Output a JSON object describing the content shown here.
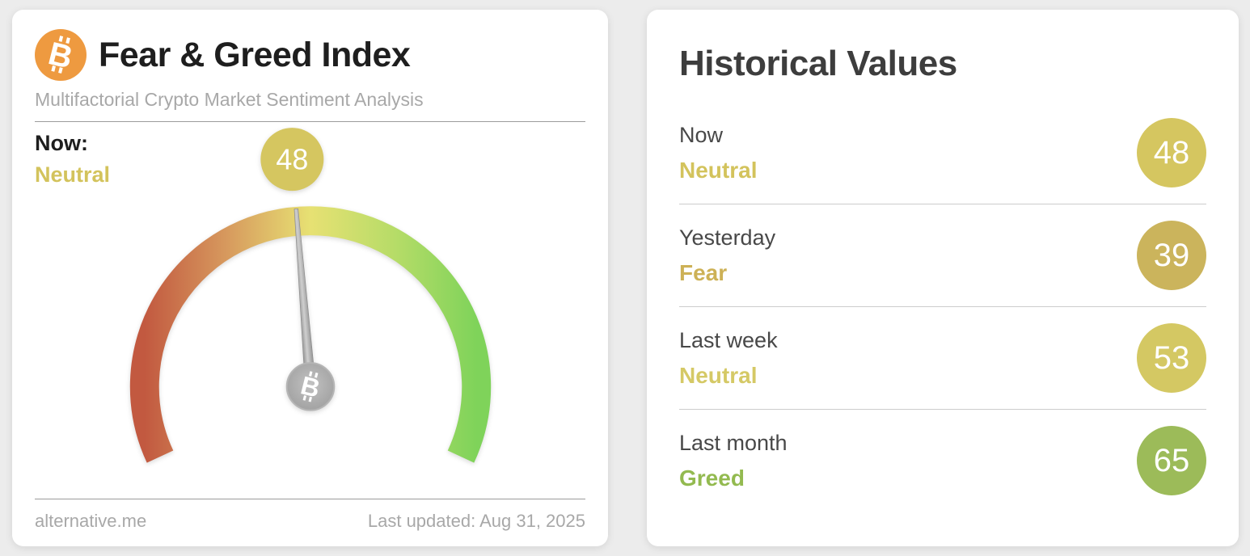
{
  "page": {
    "background": "#ececec"
  },
  "fear_greed_card": {
    "title": "Fear & Greed Index",
    "subtitle": "Multifactorial Crypto Market Sentiment Analysis",
    "now_label": "Now:",
    "now_classification": "Neutral",
    "now_classification_color": "#d3c35c",
    "bitcoin_orange": "#ee9a40",
    "footer_site": "alternative.me",
    "footer_updated": "Last updated: Aug 31, 2025"
  },
  "historical": {
    "title": "Historical Values",
    "rows": [
      {
        "label": "Now",
        "classification": "Neutral",
        "classification_color": "#d3c35c",
        "value": "48",
        "badge_color": "#d5c660"
      },
      {
        "label": "Yesterday",
        "classification": "Fear",
        "classification_color": "#cdb156",
        "value": "39",
        "badge_color": "#cbb45c"
      },
      {
        "label": "Last week",
        "classification": "Neutral",
        "classification_color": "#d5c966",
        "value": "53",
        "badge_color": "#d4c863"
      },
      {
        "label": "Last month",
        "classification": "Greed",
        "classification_color": "#93ba50",
        "value": "65",
        "badge_color": "#9cbb59"
      }
    ]
  },
  "chart_data": {
    "type": "gauge",
    "title": "Fear & Greed Index",
    "value": 48,
    "min": 0,
    "max": 100,
    "classification": "Neutral",
    "arc_span_deg": 230,
    "badge_color": "#d5c660",
    "gradient": [
      "#c25940",
      "#d79a5e",
      "#e7e173",
      "#b7dc68",
      "#7fd35a"
    ],
    "historical_series": [
      {
        "period": "Now",
        "value": 48,
        "classification": "Neutral"
      },
      {
        "period": "Yesterday",
        "value": 39,
        "classification": "Fear"
      },
      {
        "period": "Last week",
        "value": 53,
        "classification": "Neutral"
      },
      {
        "period": "Last month",
        "value": 65,
        "classification": "Greed"
      }
    ]
  }
}
